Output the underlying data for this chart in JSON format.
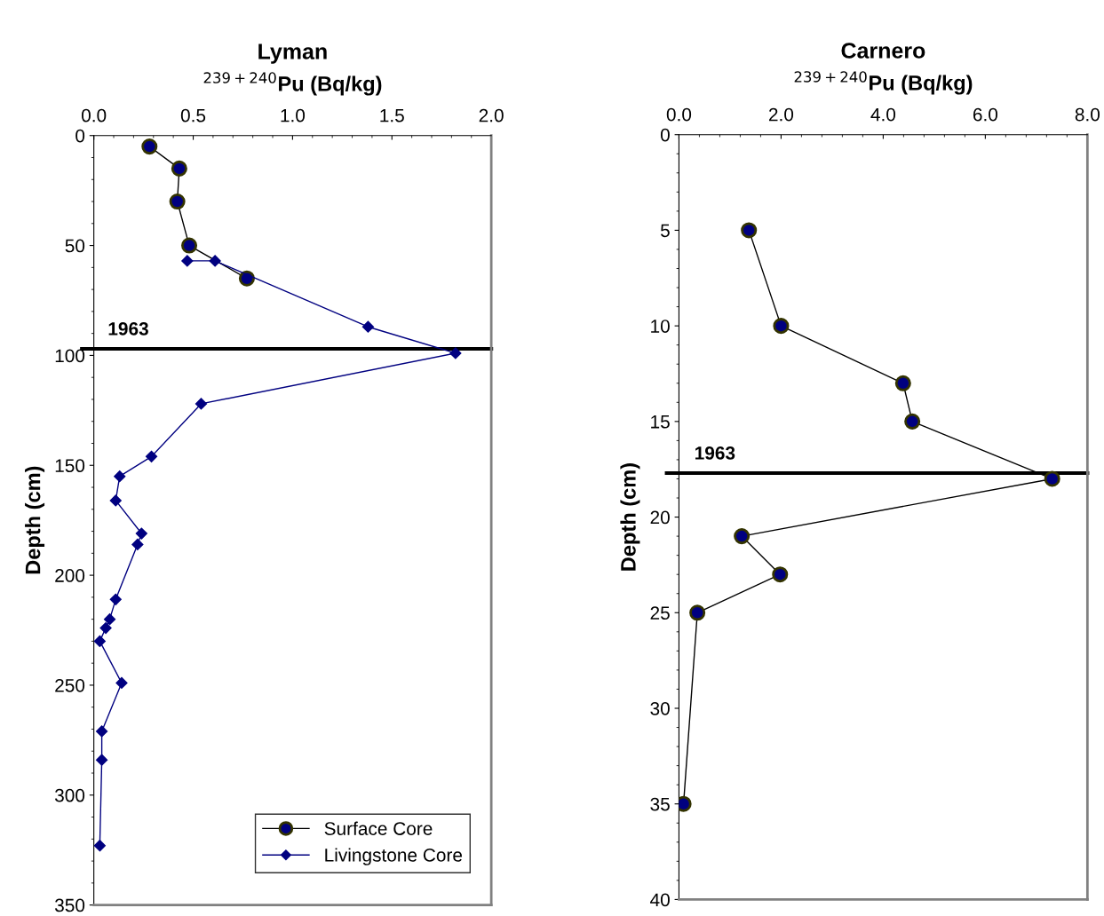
{
  "chart_data": [
    {
      "type": "line",
      "title": "Lyman",
      "xlabel": "$^{239+240}$Pu (Bq/kg)",
      "ylabel": "Depth (cm)",
      "xlim": [
        0,
        2.0
      ],
      "xticks": [
        {
          "value": 0,
          "label": "0.0"
        },
        0.5,
        {
          "value": 1,
          "label": "1.0"
        },
        1.5,
        {
          "value": 2,
          "label": "2.0"
        }
      ],
      "ylim": [
        350,
        0
      ],
      "yticks": [
        0,
        50,
        100,
        150,
        200,
        250,
        300,
        350
      ],
      "grid": false,
      "legend": "bottom right",
      "line_style": "solid",
      "series": [
        {
          "name": "Surface Core",
          "color": "#000080",
          "marker": "circle",
          "x": [
            0.28,
            0.43,
            0.42,
            0.48,
            0.77
          ],
          "values": [
            5,
            15,
            30,
            50,
            65
          ]
        },
        {
          "name": "Livingstone Core",
          "color": "#000080",
          "marker": "diamond",
          "x": [
            0.47,
            0.61,
            1.38,
            1.82,
            0.54,
            0.29,
            0.13,
            0.11,
            0.24,
            0.22,
            0.11,
            0.08,
            0.06,
            0.03,
            0.14,
            0.04,
            0.04,
            0.03
          ],
          "values": [
            57,
            57,
            87,
            99,
            122,
            146,
            155,
            166,
            181,
            186,
            211,
            220,
            224,
            230,
            249,
            271,
            284,
            323
          ]
        }
      ],
      "ref_lines": [
        {
          "axis": "y",
          "value": 97,
          "color": "#000000"
        }
      ],
      "annotations": [
        {
          "text": "1963",
          "x": 0.07,
          "y": 97
        }
      ]
    },
    {
      "type": "line",
      "title": "Carnero",
      "xlabel": "$^{239+240}$Pu (Bq/kg)",
      "ylabel": "Depth (cm)",
      "xlim": [
        0,
        8.0
      ],
      "xticks": [
        {
          "value": 0,
          "label": "0.0"
        },
        {
          "value": 2,
          "label": "2.0"
        },
        {
          "value": 4,
          "label": "4.0"
        },
        {
          "value": 6,
          "label": "6.0"
        },
        {
          "value": 8,
          "label": "8.0"
        }
      ],
      "ylim": [
        40,
        0
      ],
      "yticks": [
        0,
        5,
        10,
        15,
        20,
        25,
        30,
        35,
        40
      ],
      "grid": false,
      "legend": false,
      "line_style": "solid",
      "series": [
        {
          "color": "#000080",
          "marker": "circle",
          "x": [
            1.37,
            2.0,
            4.39,
            4.57,
            7.31,
            1.23,
            1.98,
            0.36,
            0.09
          ],
          "values": [
            5,
            10,
            13,
            15,
            18,
            21,
            23,
            25,
            35
          ]
        }
      ],
      "ref_lines": [
        {
          "axis": "y",
          "value": 17.7,
          "color": "#000000"
        }
      ],
      "annotations": [
        {
          "text": "1963",
          "x": 0.3,
          "y": 17.7
        }
      ]
    }
  ]
}
